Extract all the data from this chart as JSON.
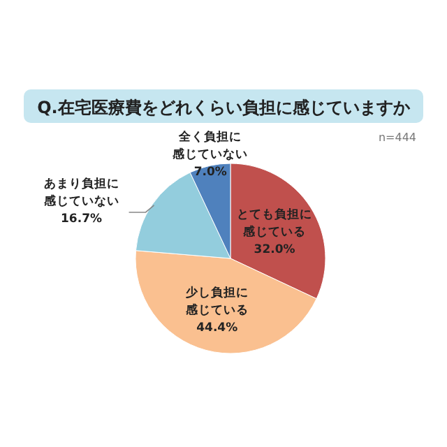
{
  "chart_data": {
    "type": "pie",
    "title": "Q.在宅医療費をどれくらい負担に感じていますか",
    "annotations": [
      "n=444"
    ],
    "categories": [
      "とても負担に感じている",
      "少し負担に感じている",
      "あまり負担に感じていない",
      "全く負担に感じていない"
    ],
    "values": [
      32.0,
      44.4,
      16.7,
      7.0
    ],
    "value_labels": [
      "32.0%",
      "44.4%",
      "16.7%",
      "7.0%"
    ],
    "colors": [
      "#c0504d",
      "#fac090",
      "#93cddd",
      "#4f81bd"
    ],
    "legend": false
  }
}
